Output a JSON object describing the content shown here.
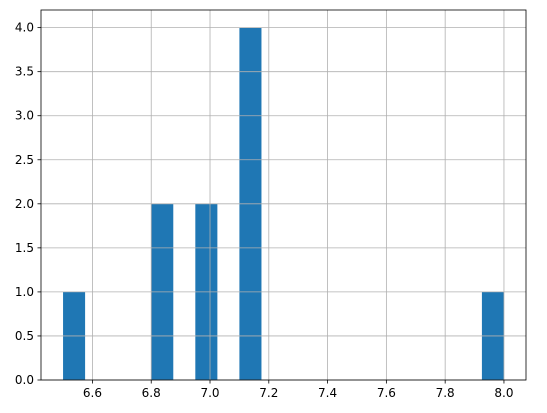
{
  "chart_data": {
    "type": "bar",
    "subtype": "histogram",
    "title": "",
    "xlabel": "",
    "ylabel": "",
    "bin_width": 0.075,
    "bins": [
      {
        "x0": 6.5,
        "x1": 6.575,
        "count": 1
      },
      {
        "x0": 6.8,
        "x1": 6.875,
        "count": 2
      },
      {
        "x0": 6.95,
        "x1": 7.025,
        "count": 2
      },
      {
        "x0": 7.1,
        "x1": 7.175,
        "count": 4
      },
      {
        "x0": 7.925,
        "x1": 8.0,
        "count": 1
      }
    ],
    "xlim": [
      6.425,
      8.075
    ],
    "ylim": [
      0,
      4.2
    ],
    "x_ticks": [
      6.6,
      6.8,
      7.0,
      7.2,
      7.4,
      7.6,
      7.8,
      8.0
    ],
    "x_tick_labels": [
      "6.6",
      "6.8",
      "7.0",
      "7.2",
      "7.4",
      "7.6",
      "7.8",
      "8.0"
    ],
    "y_ticks": [
      0,
      0.5,
      1.0,
      1.5,
      2.0,
      2.5,
      3.0,
      3.5,
      4.0
    ],
    "y_tick_labels": [
      "0.0",
      "0.5",
      "1.0",
      "1.5",
      "2.0",
      "2.5",
      "3.0",
      "3.5",
      "4.0"
    ],
    "grid": true,
    "bar_color": "#1f77b4",
    "grid_color": "#b0b0b0"
  }
}
